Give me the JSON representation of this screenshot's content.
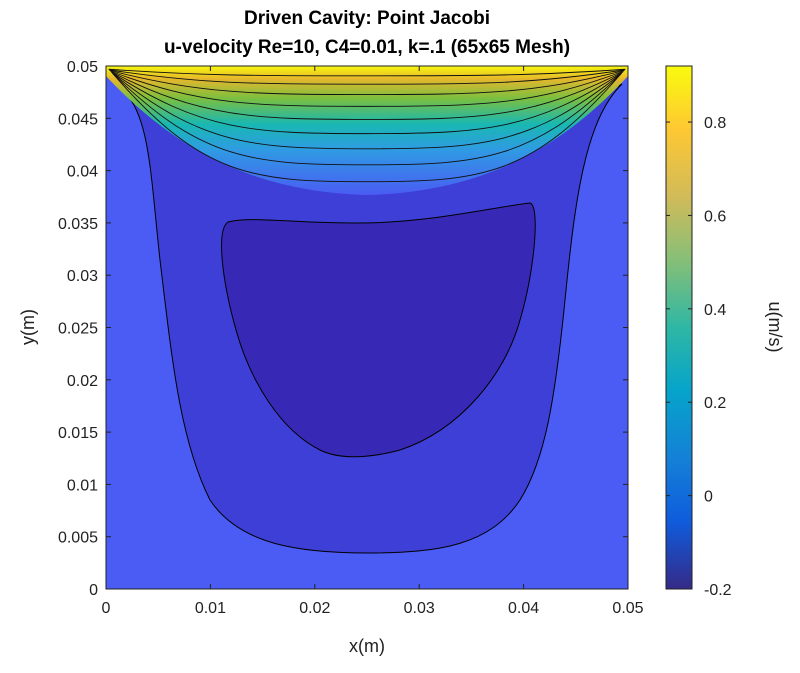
{
  "chart_data": {
    "type": "heatmap",
    "subtype": "filled-contour",
    "title": "Driven Cavity: Point Jacobi",
    "subtitle": "u-velocity Re=10, C4=0.01, k=.1 (65x65 Mesh)",
    "xlabel": "x(m)",
    "ylabel": "y(m)",
    "xlim": [
      0,
      0.05
    ],
    "ylim": [
      0,
      0.05
    ],
    "xticks": [
      "0",
      "0.01",
      "0.02",
      "0.03",
      "0.04",
      "0.05"
    ],
    "yticks": [
      "0",
      "0.005",
      "0.01",
      "0.015",
      "0.02",
      "0.025",
      "0.03",
      "0.035",
      "0.04",
      "0.045",
      "0.05"
    ],
    "colorbar": {
      "label": "u(m/s)",
      "range": [
        -0.2,
        0.92
      ],
      "ticks": [
        "-0.2",
        "0",
        "0.2",
        "0.4",
        "0.6",
        "0.8"
      ],
      "colormap": "parula"
    },
    "lid_velocity": 1.0,
    "contour_levels_approx": [
      -0.1,
      0.0,
      0.1,
      0.2,
      0.3,
      0.4,
      0.5,
      0.6,
      0.7,
      0.8,
      0.9
    ],
    "grid": false
  }
}
